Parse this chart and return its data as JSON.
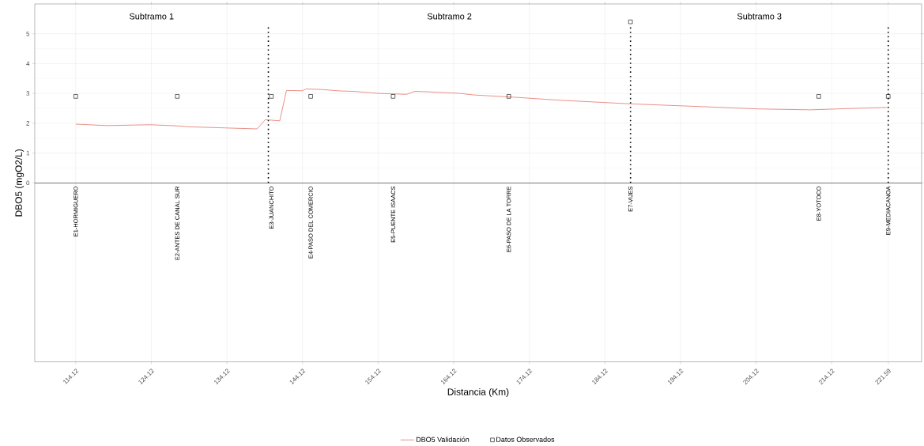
{
  "chart_data": {
    "type": "line",
    "xlabel": "Distancia (Km)",
    "ylabel": "DBO5 (mgO2/L)",
    "xlim": [
      108.7,
      226.0
    ],
    "ylim": [
      -6,
      6
    ],
    "xticks": [
      114.12,
      124.12,
      134.12,
      144.12,
      154.12,
      164.12,
      174.12,
      184.12,
      194.12,
      204.12,
      214.12,
      221.59
    ],
    "yticks": [
      0,
      1,
      2,
      3,
      4,
      5
    ],
    "grid": true,
    "legend": "bottom",
    "series": [
      {
        "name": "DBO5 Validación",
        "color": "#e8837a",
        "marker": "none",
        "line_style": "solid",
        "x": [
          114.12,
          114.95,
          118.3,
          120.2,
          123.9,
          127.65,
          129.2,
          138.1,
          139.2,
          141.1,
          142.0,
          144.1,
          144.6,
          146.7,
          149.3,
          150.8,
          154.2,
          157.9,
          159.0,
          160.1,
          165.0,
          166.7,
          172.3,
          178.2,
          187.5,
          196.6,
          204.4,
          211.3,
          216.0,
          221.4
        ],
        "values": [
          1.97,
          1.96,
          1.92,
          1.93,
          1.95,
          1.91,
          1.88,
          1.81,
          2.12,
          2.08,
          3.1,
          3.09,
          3.15,
          3.13,
          3.08,
          3.07,
          3.0,
          2.97,
          3.07,
          3.06,
          3.0,
          2.95,
          2.87,
          2.77,
          2.65,
          2.56,
          2.48,
          2.45,
          2.49,
          2.53
        ]
      },
      {
        "name": "Datos Observados",
        "type": "scatter",
        "color": "#000000",
        "marker": "square",
        "x": [
          114.12,
          127.55,
          140.0,
          145.2,
          156.1,
          171.4,
          187.5,
          212.4,
          221.59
        ],
        "values": [
          2.9,
          2.9,
          2.9,
          2.9,
          2.9,
          2.9,
          5.4,
          2.9,
          2.9
        ]
      }
    ],
    "ref_lines": [
      {
        "axis": "y",
        "value": 0,
        "color": "#000000",
        "line_style": "solid"
      },
      {
        "axis": "x",
        "value": 139.6,
        "color": "#000000",
        "line_style": "dotted"
      },
      {
        "axis": "x",
        "value": 187.5,
        "color": "#000000",
        "line_style": "dotted"
      },
      {
        "axis": "x",
        "value": 221.59,
        "color": "#000000",
        "line_style": "dotted"
      }
    ],
    "annotations": [
      "Subtramo 1",
      "Subtramo 2",
      "Subtramo 3",
      {
        "text": "E1-HORMIGUERO",
        "x": 114.12,
        "y": 0
      },
      {
        "text": "E2-ANTES DE CANAL SUR",
        "x": 127.55,
        "y": 0
      },
      {
        "text": "E3-JUANCHITO",
        "x": 140.0,
        "y": 0
      },
      {
        "text": "E4-PASO DEL COMERCIO",
        "x": 145.2,
        "y": 0
      },
      {
        "text": "E5-PUENTE ISAACS",
        "x": 156.1,
        "y": 0
      },
      {
        "text": "E6-PASO DE LA TORRE",
        "x": 171.4,
        "y": 0
      },
      {
        "text": "E7-VIJES",
        "x": 187.5,
        "y": 0
      },
      {
        "text": "E8-YOTOCO",
        "x": 212.4,
        "y": 0
      },
      {
        "text": "E9-MEDIACANOA",
        "x": 221.59,
        "y": 0
      }
    ]
  }
}
